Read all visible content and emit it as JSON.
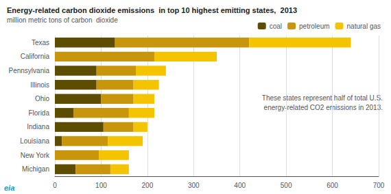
{
  "chart_data": {
    "type": "bar",
    "orientation": "horizontal",
    "stacked": true,
    "title": "Energy-related carbon dioxide emissions  in top 10 highest emitting states,  2013",
    "subtitle": "million metric tons of carbon  dioxide",
    "categories": [
      "Texas",
      "California",
      "Pennsylvania",
      "Illinois",
      "Ohio",
      "Florida",
      "Indiana",
      "Louisiana",
      "New York",
      "Michigan"
    ],
    "series": [
      {
        "name": "coal",
        "color": "#5c4d00",
        "values": [
          130,
          0,
          90,
          90,
          100,
          40,
          105,
          15,
          0,
          45
        ]
      },
      {
        "name": "petroleum",
        "color": "#c8960c",
        "values": [
          290,
          215,
          85,
          80,
          70,
          120,
          65,
          100,
          95,
          75
        ]
      },
      {
        "name": "natural gas",
        "color": "#f5c400",
        "values": [
          220,
          135,
          65,
          55,
          45,
          55,
          30,
          75,
          65,
          40
        ]
      }
    ],
    "xlim": [
      0,
      700
    ],
    "xticks": [
      0,
      100,
      200,
      300,
      400,
      500,
      600,
      700
    ],
    "grid": true,
    "legend": "upper right",
    "annotations": [
      "These states represent half of total U.S.",
      "energy-related CO2 emissions in 2013.",
      "eia"
    ]
  }
}
